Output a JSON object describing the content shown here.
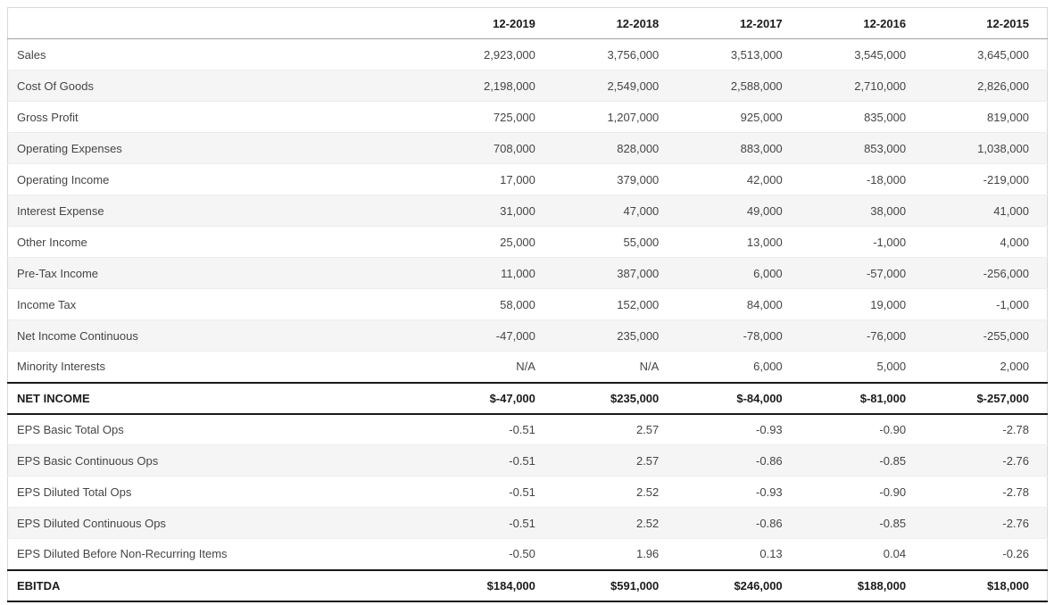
{
  "chart_data": {
    "type": "table",
    "columns": [
      "12-2019",
      "12-2018",
      "12-2017",
      "12-2016",
      "12-2015"
    ],
    "rows": [
      {
        "label": "Sales",
        "values": [
          "2,923,000",
          "3,756,000",
          "3,513,000",
          "3,545,000",
          "3,645,000"
        ],
        "emphasis": false
      },
      {
        "label": "Cost Of Goods",
        "values": [
          "2,198,000",
          "2,549,000",
          "2,588,000",
          "2,710,000",
          "2,826,000"
        ],
        "emphasis": false
      },
      {
        "label": "Gross Profit",
        "values": [
          "725,000",
          "1,207,000",
          "925,000",
          "835,000",
          "819,000"
        ],
        "emphasis": false
      },
      {
        "label": "Operating Expenses",
        "values": [
          "708,000",
          "828,000",
          "883,000",
          "853,000",
          "1,038,000"
        ],
        "emphasis": false
      },
      {
        "label": "Operating Income",
        "values": [
          "17,000",
          "379,000",
          "42,000",
          "-18,000",
          "-219,000"
        ],
        "emphasis": false
      },
      {
        "label": "Interest Expense",
        "values": [
          "31,000",
          "47,000",
          "49,000",
          "38,000",
          "41,000"
        ],
        "emphasis": false
      },
      {
        "label": "Other Income",
        "values": [
          "25,000",
          "55,000",
          "13,000",
          "-1,000",
          "4,000"
        ],
        "emphasis": false
      },
      {
        "label": "Pre-Tax Income",
        "values": [
          "11,000",
          "387,000",
          "6,000",
          "-57,000",
          "-256,000"
        ],
        "emphasis": false
      },
      {
        "label": "Income Tax",
        "values": [
          "58,000",
          "152,000",
          "84,000",
          "19,000",
          "-1,000"
        ],
        "emphasis": false
      },
      {
        "label": "Net Income Continuous",
        "values": [
          "-47,000",
          "235,000",
          "-78,000",
          "-76,000",
          "-255,000"
        ],
        "emphasis": false
      },
      {
        "label": "Minority Interests",
        "values": [
          "N/A",
          "N/A",
          "6,000",
          "5,000",
          "2,000"
        ],
        "emphasis": false
      },
      {
        "label": "NET INCOME",
        "values": [
          "$-47,000",
          "$235,000",
          "$-84,000",
          "$-81,000",
          "$-257,000"
        ],
        "emphasis": true
      },
      {
        "label": "EPS Basic Total Ops",
        "values": [
          "-0.51",
          "2.57",
          "-0.93",
          "-0.90",
          "-2.78"
        ],
        "emphasis": false
      },
      {
        "label": "EPS Basic Continuous Ops",
        "values": [
          "-0.51",
          "2.57",
          "-0.86",
          "-0.85",
          "-2.76"
        ],
        "emphasis": false
      },
      {
        "label": "EPS Diluted Total Ops",
        "values": [
          "-0.51",
          "2.52",
          "-0.93",
          "-0.90",
          "-2.78"
        ],
        "emphasis": false
      },
      {
        "label": "EPS Diluted Continuous Ops",
        "values": [
          "-0.51",
          "2.52",
          "-0.86",
          "-0.85",
          "-2.76"
        ],
        "emphasis": false
      },
      {
        "label": "EPS Diluted Before Non-Recurring Items",
        "values": [
          "-0.50",
          "1.96",
          "0.13",
          "0.04",
          "-0.26"
        ],
        "emphasis": false
      },
      {
        "label": "EBITDA",
        "values": [
          "$184,000",
          "$591,000",
          "$246,000",
          "$188,000",
          "$18,000"
        ],
        "emphasis": true
      }
    ]
  },
  "colors": {
    "stripe": "#f5f5f5",
    "row_divider": "#ededed",
    "outer_border": "#d8d8d8",
    "header_divider": "#a0a0a0",
    "emphasis_border": "#1a1a1a",
    "text": "#454545",
    "text_strong": "#1b1b1b"
  }
}
